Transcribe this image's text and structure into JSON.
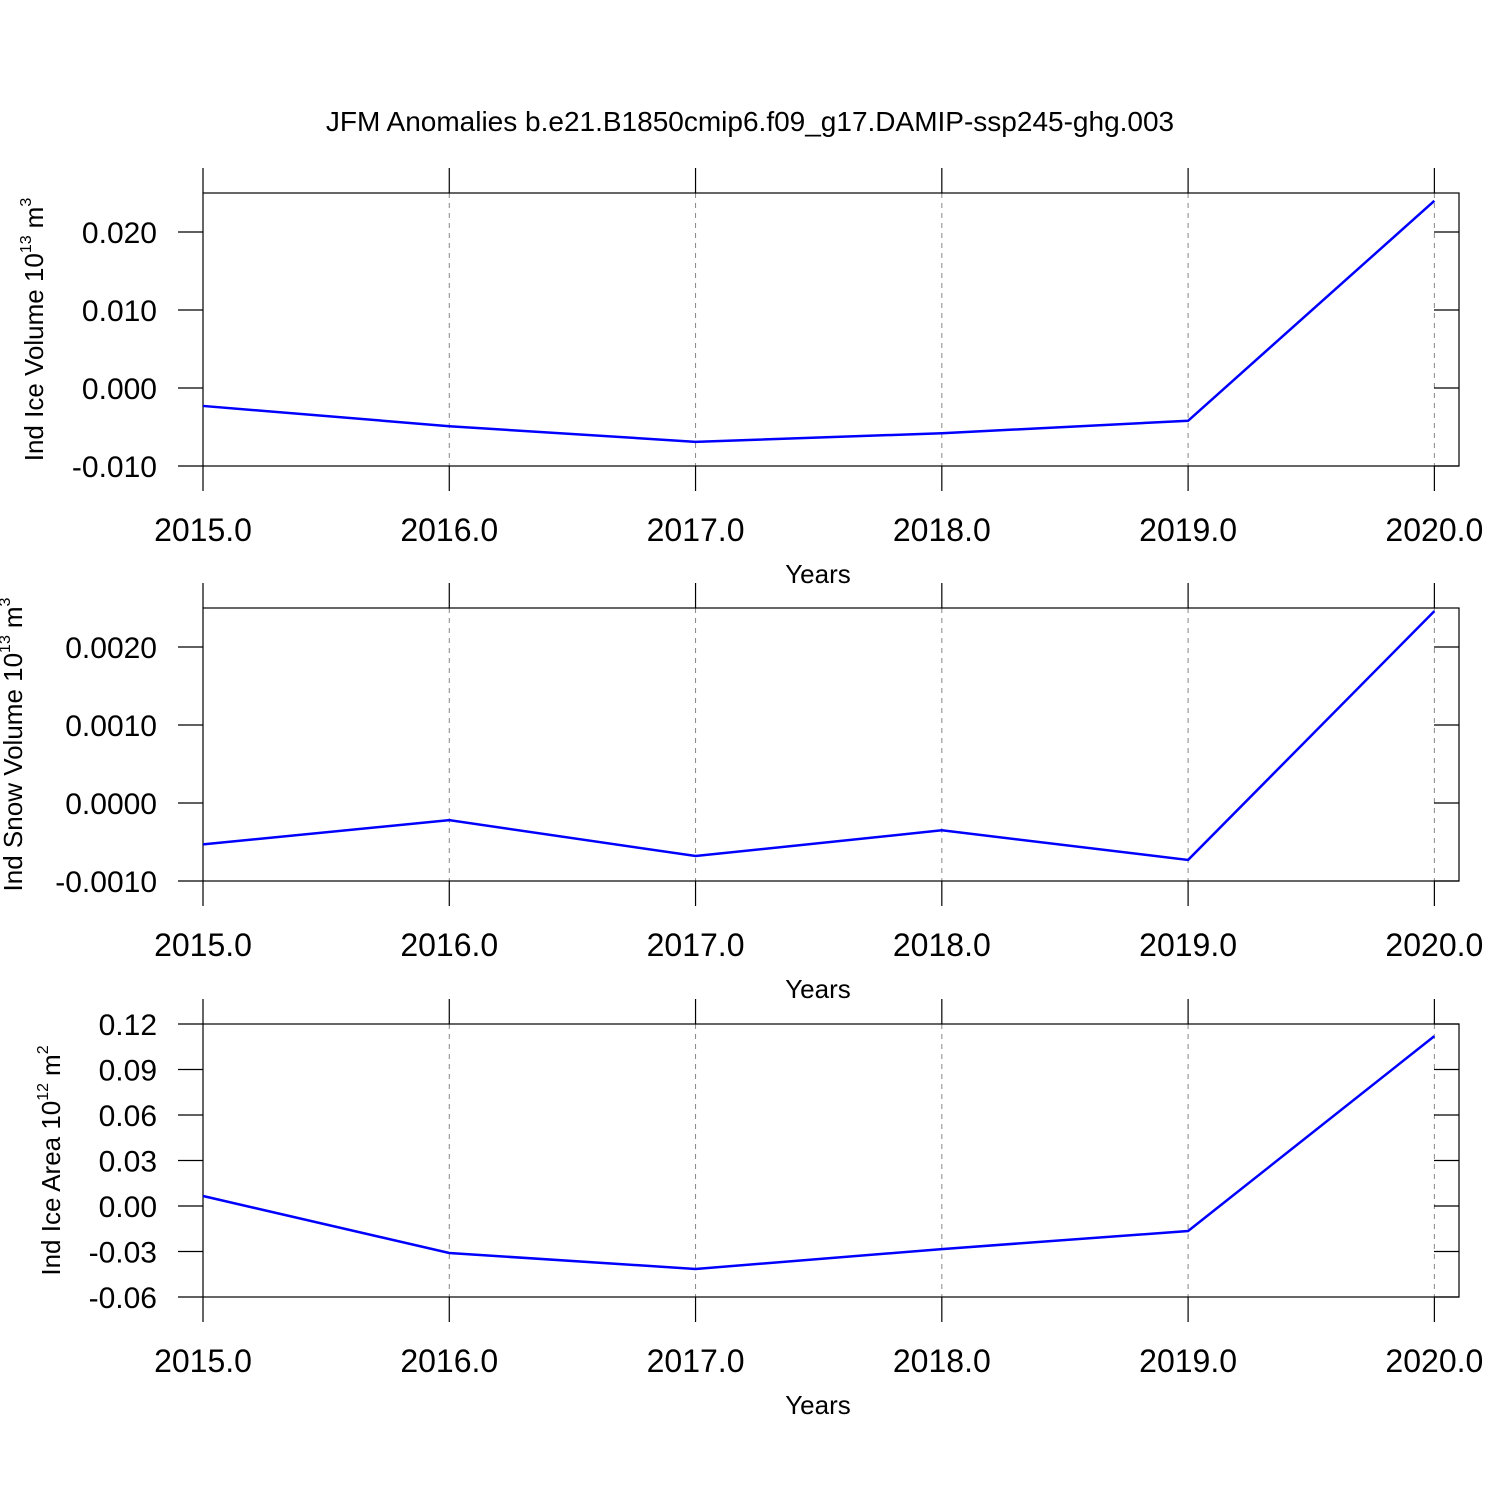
{
  "chart_data": [
    {
      "type": "line",
      "title": "JFM Anomalies b.e21.B1850cmip6.f09_g17.DAMIP-ssp245-ghg.003",
      "ylabel_parts": [
        "Ind Ice Volume 10",
        "13",
        "m",
        "3"
      ],
      "xlabel": "Years",
      "x": [
        2015,
        2016,
        2017,
        2018,
        2019,
        2020
      ],
      "series": [
        {
          "color": "#0000ff",
          "values": [
            -0.0023,
            -0.0049,
            -0.0069,
            -0.0058,
            -0.0042,
            0.024
          ]
        }
      ],
      "xlim": [
        2015,
        2020.1
      ],
      "xticks": [
        {
          "value": 2015,
          "label": "2015.0"
        },
        {
          "value": 2016,
          "label": "2016.0"
        },
        {
          "value": 2017,
          "label": "2017.0"
        },
        {
          "value": 2018,
          "label": "2018.0"
        },
        {
          "value": 2019,
          "label": "2019.0"
        },
        {
          "value": 2020,
          "label": "2020.0"
        }
      ],
      "ylim": [
        -0.01,
        0.025
      ],
      "yticks": [
        {
          "value": -0.01,
          "label": "-0.010"
        },
        {
          "value": 0,
          "label": "0.000"
        },
        {
          "value": 0.01,
          "label": "0.010"
        },
        {
          "value": 0.02,
          "label": "0.020"
        }
      ],
      "grid": "x-dashed"
    },
    {
      "type": "line",
      "ylabel_parts": [
        "Ind Snow Volume 10",
        "13",
        "m",
        "3"
      ],
      "xlabel": "Years",
      "x": [
        2015,
        2016,
        2017,
        2018,
        2019,
        2020
      ],
      "series": [
        {
          "color": "#0000ff",
          "values": [
            -0.00053,
            -0.00022,
            -0.00068,
            -0.00035,
            -0.00073,
            0.00246
          ]
        }
      ],
      "xlim": [
        2015,
        2020.1
      ],
      "xticks": [
        {
          "value": 2015,
          "label": "2015.0"
        },
        {
          "value": 2016,
          "label": "2016.0"
        },
        {
          "value": 2017,
          "label": "2017.0"
        },
        {
          "value": 2018,
          "label": "2018.0"
        },
        {
          "value": 2019,
          "label": "2019.0"
        },
        {
          "value": 2020,
          "label": "2020.0"
        }
      ],
      "ylim": [
        -0.001,
        0.0025
      ],
      "yticks": [
        {
          "value": -0.001,
          "label": "-0.0010"
        },
        {
          "value": 0,
          "label": "0.0000"
        },
        {
          "value": 0.001,
          "label": "0.0010"
        },
        {
          "value": 0.002,
          "label": "0.0020"
        }
      ],
      "grid": "x-dashed"
    },
    {
      "type": "line",
      "ylabel_parts": [
        "Ind Ice Area 10",
        "12",
        "m",
        "2"
      ],
      "xlabel": "Years",
      "x": [
        2015,
        2016,
        2017,
        2018,
        2019,
        2020
      ],
      "series": [
        {
          "color": "#0000ff",
          "values": [
            0.0066,
            -0.031,
            -0.0415,
            -0.0284,
            -0.0165,
            0.112
          ]
        }
      ],
      "xlim": [
        2015,
        2020.1
      ],
      "xticks": [
        {
          "value": 2015,
          "label": "2015.0"
        },
        {
          "value": 2016,
          "label": "2016.0"
        },
        {
          "value": 2017,
          "label": "2017.0"
        },
        {
          "value": 2018,
          "label": "2018.0"
        },
        {
          "value": 2019,
          "label": "2019.0"
        },
        {
          "value": 2020,
          "label": "2020.0"
        }
      ],
      "ylim": [
        -0.06,
        0.12
      ],
      "yticks": [
        {
          "value": -0.06,
          "label": "-0.06"
        },
        {
          "value": -0.03,
          "label": "-0.03"
        },
        {
          "value": 0,
          "label": "0.00"
        },
        {
          "value": 0.03,
          "label": "0.03"
        },
        {
          "value": 0.06,
          "label": "0.06"
        },
        {
          "value": 0.09,
          "label": "0.09"
        },
        {
          "value": 0.12,
          "label": "0.12"
        }
      ],
      "grid": "x-dashed"
    }
  ]
}
